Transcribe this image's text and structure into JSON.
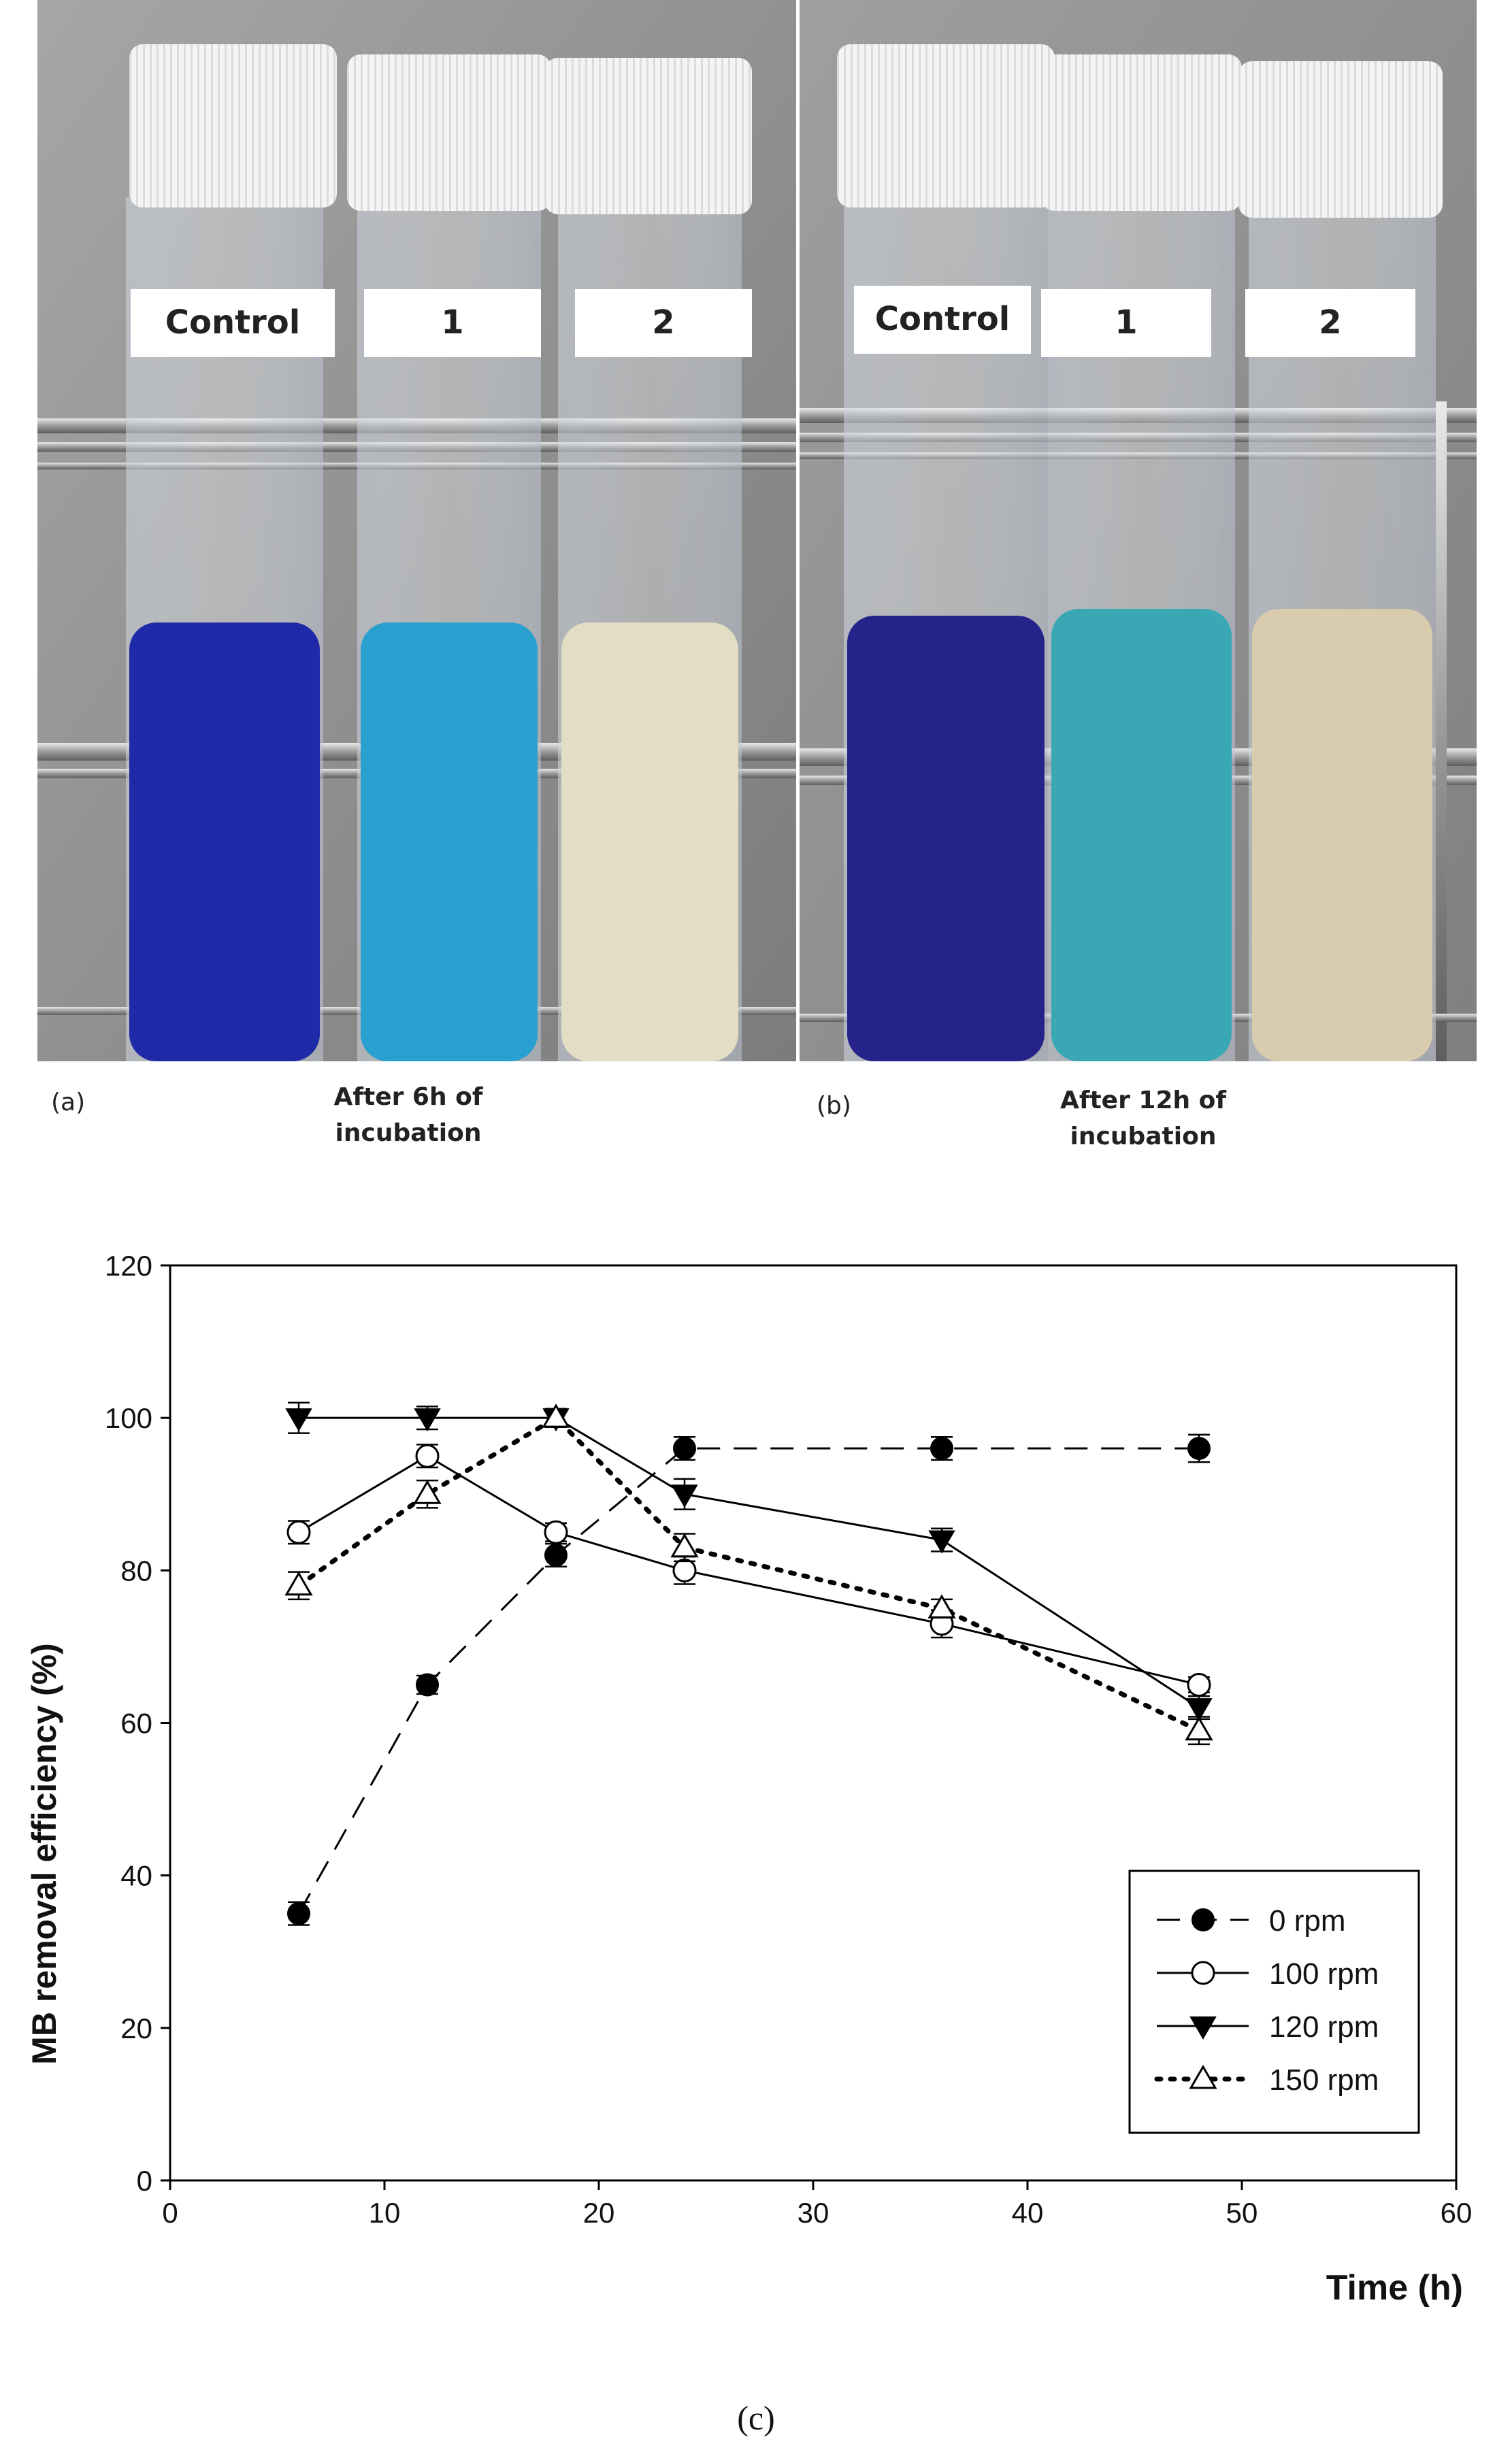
{
  "panels": {
    "a": {
      "letter": "(a)",
      "caption_line1": "After 6h of",
      "caption_line2": "incubation",
      "tubes": [
        {
          "label": "Control",
          "liquid_color": "#1f2aa8"
        },
        {
          "label": "1",
          "liquid_color": "#2aa0d0"
        },
        {
          "label": "2",
          "liquid_color": "#e3ddc4"
        }
      ]
    },
    "b": {
      "letter": "(b)",
      "caption_line1": "After 12h of",
      "caption_line2": "incubation",
      "tubes": [
        {
          "label": "Control",
          "liquid_color": "#25238a"
        },
        {
          "label": "1",
          "liquid_color": "#3aa7b4"
        },
        {
          "label": "2",
          "liquid_color": "#d9ccae"
        }
      ]
    },
    "c": {
      "letter": "(c)"
    }
  },
  "chart_data": {
    "type": "line",
    "title": "",
    "xlabel": "Time (h)",
    "ylabel": "MB removal efficiency (%)",
    "xlim": [
      0,
      60
    ],
    "ylim": [
      0,
      120
    ],
    "xticks": [
      0,
      10,
      20,
      30,
      40,
      50,
      60
    ],
    "yticks": [
      0,
      20,
      40,
      60,
      80,
      100,
      120
    ],
    "grid": false,
    "legend_position": "bottom-right",
    "series": [
      {
        "name": "0 rpm",
        "marker": "filled-circle",
        "line": "dashed",
        "x": [
          6,
          12,
          18,
          24,
          36,
          48
        ],
        "y": [
          35,
          65,
          82,
          96,
          96,
          96
        ],
        "err": [
          1.5,
          1.2,
          1.5,
          1.5,
          1.5,
          1.8
        ]
      },
      {
        "name": "100 rpm",
        "marker": "open-circle",
        "line": "solid",
        "x": [
          6,
          12,
          18,
          24,
          36,
          48
        ],
        "y": [
          85,
          95,
          85,
          80,
          73,
          65
        ],
        "err": [
          1.5,
          1.5,
          1.2,
          1.8,
          1.8,
          1.0
        ]
      },
      {
        "name": "120 rpm",
        "marker": "filled-triangle-down",
        "line": "solid",
        "x": [
          6,
          12,
          18,
          24,
          36,
          48
        ],
        "y": [
          100,
          100,
          100,
          90,
          84,
          62
        ],
        "err": [
          2.0,
          1.5,
          1.2,
          2.0,
          1.5,
          1.5
        ]
      },
      {
        "name": "150 rpm",
        "marker": "open-triangle-up",
        "line": "dotted",
        "x": [
          6,
          12,
          18,
          24,
          36,
          48
        ],
        "y": [
          78,
          90,
          100,
          83,
          75,
          59
        ],
        "err": [
          1.8,
          1.8,
          1.2,
          1.8,
          1.2,
          1.8
        ]
      }
    ]
  }
}
